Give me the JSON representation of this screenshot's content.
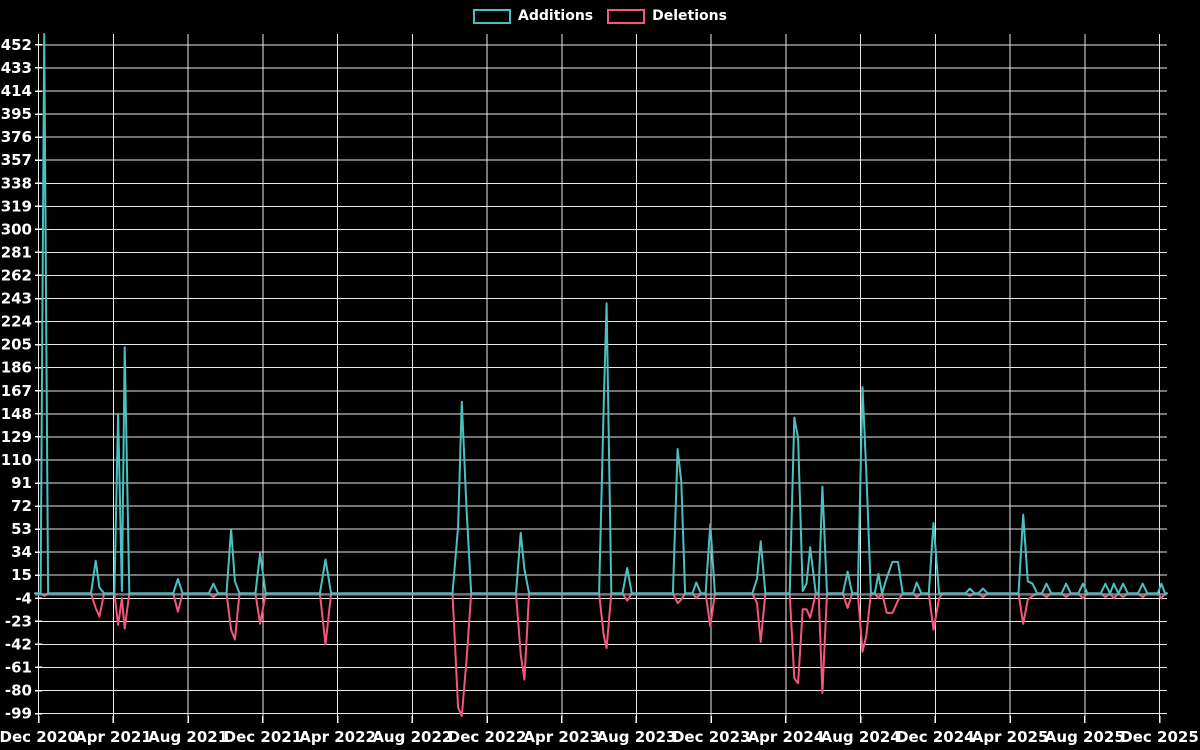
{
  "chart": {
    "background": "#000000",
    "grid_color": "#e9e9e9",
    "text_color": "#ffffff",
    "zero_line_color": "#8fa8b2",
    "legend": [
      {
        "label": "Additions",
        "color": "#4bc0c0"
      },
      {
        "label": "Deletions",
        "color": "#f4567c"
      }
    ]
  },
  "chart_data": {
    "type": "line",
    "title": "",
    "xlabel": "",
    "ylabel": "",
    "grid": true,
    "legend_position": "top-center",
    "x_axis": {
      "tick_labels": [
        "Dec 2020",
        "Apr 2021",
        "Aug 2021",
        "Dec 2021",
        "Apr 2022",
        "Aug 2022",
        "Dec 2022",
        "Apr 2023",
        "Aug 2023",
        "Dec 2023",
        "Apr 2024",
        "Aug 2024",
        "Dec 2024",
        "Apr 2025",
        "Aug 2025",
        "Dec 2025"
      ],
      "tick_step_months": 4,
      "range_months": [
        -0.2,
        60.4
      ]
    },
    "y_axis": {
      "ticks": [
        452,
        433,
        414,
        395,
        376,
        357,
        338,
        319,
        300,
        281,
        262,
        243,
        224,
        205,
        186,
        167,
        148,
        129,
        110,
        91,
        72,
        53,
        34,
        15,
        -4,
        -23,
        -42,
        -61,
        -80,
        -99
      ],
      "range": [
        -101,
        461
      ]
    },
    "series": [
      {
        "name": "Additions",
        "color": "#4bc0c0"
      },
      {
        "name": "Deletions",
        "color": "#f4567c"
      }
    ],
    "points_format": [
      "months_after_Dec_2020",
      "additions",
      "deletions"
    ],
    "points": [
      [
        -0.2,
        0,
        0
      ],
      [
        0.1,
        0,
        0
      ],
      [
        0.29,
        461,
        -2
      ],
      [
        0.5,
        0,
        0
      ],
      [
        2.8,
        0,
        0
      ],
      [
        3.05,
        27,
        -12
      ],
      [
        3.25,
        5,
        -19
      ],
      [
        3.5,
        0,
        0
      ],
      [
        4.05,
        0,
        0
      ],
      [
        4.25,
        148,
        -26
      ],
      [
        4.45,
        2,
        -4
      ],
      [
        4.6,
        203,
        -29
      ],
      [
        4.85,
        0,
        0
      ],
      [
        7.2,
        0,
        0
      ],
      [
        7.45,
        12,
        -15
      ],
      [
        7.7,
        0,
        0
      ],
      [
        9.1,
        0,
        0
      ],
      [
        9.35,
        8,
        -3
      ],
      [
        9.6,
        0,
        0
      ],
      [
        10.05,
        0,
        0
      ],
      [
        10.3,
        53,
        -30
      ],
      [
        10.5,
        10,
        -38
      ],
      [
        10.75,
        0,
        0
      ],
      [
        11.6,
        0,
        0
      ],
      [
        11.85,
        33,
        -25
      ],
      [
        12.15,
        0,
        0
      ],
      [
        15.05,
        0,
        0
      ],
      [
        15.35,
        28,
        -42
      ],
      [
        15.65,
        0,
        0
      ],
      [
        22.15,
        0,
        0
      ],
      [
        22.45,
        55,
        -94
      ],
      [
        22.65,
        158,
        -101
      ],
      [
        22.9,
        70,
        -55
      ],
      [
        23.15,
        0,
        0
      ],
      [
        25.55,
        0,
        0
      ],
      [
        25.8,
        50,
        -50
      ],
      [
        26.0,
        20,
        -71
      ],
      [
        26.25,
        0,
        0
      ],
      [
        30.0,
        0,
        0
      ],
      [
        30.25,
        158,
        -35
      ],
      [
        30.4,
        239,
        -45
      ],
      [
        30.65,
        0,
        0
      ],
      [
        31.25,
        0,
        0
      ],
      [
        31.5,
        21,
        -6
      ],
      [
        31.75,
        0,
        0
      ],
      [
        33.95,
        0,
        0
      ],
      [
        34.2,
        119,
        -8
      ],
      [
        34.4,
        92,
        -5
      ],
      [
        34.6,
        0,
        0
      ],
      [
        35.0,
        0,
        0
      ],
      [
        35.2,
        9,
        -4
      ],
      [
        35.45,
        0,
        0
      ],
      [
        35.7,
        0,
        0
      ],
      [
        35.95,
        57,
        -27
      ],
      [
        36.2,
        0,
        0
      ],
      [
        38.2,
        0,
        0
      ],
      [
        38.45,
        12,
        -8
      ],
      [
        38.65,
        43,
        -40
      ],
      [
        38.9,
        0,
        0
      ],
      [
        40.2,
        0,
        0
      ],
      [
        40.45,
        145,
        -70
      ],
      [
        40.65,
        128,
        -74
      ],
      [
        40.9,
        2,
        -13
      ],
      [
        41.1,
        8,
        -13
      ],
      [
        41.3,
        38,
        -20
      ],
      [
        41.6,
        0,
        0
      ],
      [
        41.75,
        0,
        0
      ],
      [
        41.95,
        88,
        -82
      ],
      [
        42.2,
        0,
        0
      ],
      [
        43.05,
        0,
        0
      ],
      [
        43.3,
        18,
        -12
      ],
      [
        43.55,
        0,
        0
      ],
      [
        43.85,
        0,
        0
      ],
      [
        44.1,
        170,
        -48
      ],
      [
        44.3,
        100,
        -35
      ],
      [
        44.55,
        0,
        0
      ],
      [
        44.75,
        0,
        0
      ],
      [
        44.95,
        16,
        -4
      ],
      [
        45.15,
        0,
        0
      ],
      [
        45.4,
        13,
        -16
      ],
      [
        45.7,
        26,
        -16
      ],
      [
        46.0,
        26,
        -6
      ],
      [
        46.25,
        0,
        0
      ],
      [
        46.8,
        0,
        0
      ],
      [
        47.0,
        9,
        -3
      ],
      [
        47.25,
        0,
        0
      ],
      [
        47.65,
        0,
        0
      ],
      [
        47.9,
        58,
        -30
      ],
      [
        48.2,
        0,
        -4
      ],
      [
        48.4,
        0,
        0
      ],
      [
        49.6,
        0,
        0
      ],
      [
        49.85,
        4,
        -2
      ],
      [
        50.1,
        0,
        0
      ],
      [
        50.3,
        0,
        0
      ],
      [
        50.55,
        4,
        -3
      ],
      [
        50.8,
        0,
        0
      ],
      [
        52.45,
        0,
        0
      ],
      [
        52.7,
        65,
        -25
      ],
      [
        52.95,
        10,
        -5
      ],
      [
        53.2,
        8,
        -2
      ],
      [
        53.45,
        0,
        0
      ],
      [
        53.7,
        0,
        0
      ],
      [
        53.95,
        8,
        -3
      ],
      [
        54.2,
        0,
        0
      ],
      [
        54.75,
        0,
        0
      ],
      [
        55.0,
        8,
        -3
      ],
      [
        55.25,
        0,
        0
      ],
      [
        55.65,
        0,
        0
      ],
      [
        55.9,
        8,
        -4
      ],
      [
        56.15,
        0,
        0
      ],
      [
        56.85,
        0,
        0
      ],
      [
        57.1,
        8,
        -3
      ],
      [
        57.35,
        0,
        0
      ],
      [
        57.55,
        8,
        -4
      ],
      [
        57.8,
        0,
        0
      ],
      [
        58.05,
        8,
        -3
      ],
      [
        58.3,
        0,
        0
      ],
      [
        58.85,
        0,
        0
      ],
      [
        59.1,
        8,
        -3
      ],
      [
        59.35,
        0,
        0
      ],
      [
        59.9,
        0,
        0
      ],
      [
        60.1,
        8,
        -4
      ],
      [
        60.3,
        0,
        0
      ],
      [
        60.4,
        0,
        0
      ]
    ]
  }
}
